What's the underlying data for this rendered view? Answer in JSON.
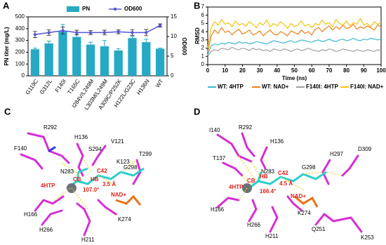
{
  "chart_data": [
    {
      "type": "bar",
      "panel": "A",
      "categories": [
        "G119C",
        "G312L",
        "F140I",
        "T165C",
        "I284V/L249M",
        "L303M/L249M",
        "A309C/P252K",
        "H122L/G23C",
        "H136N",
        "WT"
      ],
      "series": [
        {
          "name": "PN",
          "color": "#26a9c4",
          "values": [
            225,
            275,
            375,
            330,
            265,
            250,
            215,
            320,
            285,
            230
          ],
          "errors": [
            10,
            20,
            60,
            20,
            20,
            50,
            15,
            15,
            25,
            5
          ]
        },
        {
          "name": "OD600",
          "type": "line",
          "axis": "y2",
          "color": "#5656d8",
          "values": [
            10.5,
            11,
            11.5,
            11,
            11,
            11,
            11.2,
            11,
            11,
            12.8
          ],
          "errors": [
            0.8,
            0.7,
            0.9,
            0.6,
            0.5,
            0.6,
            0.5,
            0.7,
            0.8,
            0.4
          ]
        }
      ],
      "ylabel": "PN titer (mg/L)",
      "y2label": "OD600",
      "ylim": [
        0,
        500
      ],
      "yticks": [
        0,
        100,
        200,
        300,
        400,
        500
      ],
      "y2lim": [
        0,
        15
      ],
      "y2ticks": [
        0,
        5,
        10,
        15
      ],
      "legend": "top"
    },
    {
      "type": "line",
      "panel": "B",
      "x": [
        0,
        2,
        4,
        6,
        8,
        10,
        12,
        14,
        16,
        18,
        20,
        22,
        24,
        26,
        28,
        30,
        32,
        34,
        36,
        38,
        40,
        42,
        44,
        46,
        48,
        50,
        52,
        54,
        56,
        58,
        60,
        62,
        64,
        66,
        68,
        70,
        72,
        74,
        76,
        78,
        80,
        82,
        84,
        86,
        88,
        90,
        92,
        94,
        96,
        98,
        100
      ],
      "series": [
        {
          "name": "WT: 4HTP",
          "color": "#3fb8d8",
          "values": [
            1.2,
            2.3,
            2.5,
            2.4,
            2.6,
            2.5,
            2.7,
            2.6,
            2.5,
            2.8,
            2.6,
            2.7,
            2.5,
            2.6,
            2.8,
            2.7,
            2.6,
            2.5,
            2.7,
            2.9,
            2.8,
            2.7,
            2.6,
            2.8,
            2.9,
            2.7,
            2.8,
            3.0,
            2.9,
            2.8,
            2.7,
            2.9,
            3.0,
            2.8,
            2.9,
            3.1,
            2.9,
            2.8,
            3.0,
            3.1,
            2.9,
            3.0,
            3.2,
            3.0,
            2.9,
            3.1,
            3.0,
            3.2,
            3.1,
            3.0,
            3.1
          ]
        },
        {
          "name": "WT: NAD+",
          "color": "#f07f1a",
          "values": [
            1.5,
            3.5,
            4.2,
            3.8,
            4.5,
            3.9,
            4.1,
            3.6,
            4.0,
            4.3,
            3.7,
            3.9,
            4.2,
            3.6,
            3.8,
            4.1,
            3.5,
            3.9,
            4.2,
            3.7,
            3.6,
            4.0,
            3.8,
            3.5,
            4.1,
            3.9,
            3.7,
            4.2,
            3.8,
            4.0,
            3.6,
            4.3,
            4.5,
            4.0,
            4.4,
            4.7,
            4.2,
            4.6,
            4.3,
            4.8,
            4.4,
            4.5,
            4.9,
            4.3,
            4.6,
            4.4,
            4.7,
            4.5,
            4.2,
            4.8,
            4.6
          ]
        },
        {
          "name": "F140I: 4HTP",
          "color": "#a0a0a0",
          "values": [
            1.0,
            1.6,
            1.8,
            1.7,
            2.0,
            1.9,
            1.8,
            2.1,
            1.9,
            1.8,
            2.0,
            1.9,
            1.7,
            2.0,
            1.8,
            1.9,
            1.7,
            1.8,
            1.6,
            1.9,
            1.8,
            1.7,
            1.9,
            1.8,
            1.6,
            1.8,
            1.9,
            1.7,
            1.8,
            2.0,
            1.8,
            1.7,
            1.6,
            1.8,
            1.7,
            1.9,
            1.8,
            1.6,
            1.7,
            1.9,
            1.8,
            1.7,
            1.6,
            1.8,
            1.7,
            1.6,
            1.8,
            1.7,
            1.6,
            1.8,
            1.7
          ]
        },
        {
          "name": "F140I: NAD+",
          "color": "#f5c211",
          "values": [
            2.0,
            4.5,
            5.2,
            4.8,
            5.5,
            4.9,
            5.1,
            4.6,
            5.3,
            4.8,
            5.0,
            4.7,
            5.2,
            4.9,
            4.5,
            5.1,
            4.8,
            5.4,
            4.6,
            5.0,
            4.7,
            5.2,
            4.9,
            4.4,
            5.0,
            4.6,
            4.8,
            5.3,
            4.7,
            4.9,
            4.5,
            5.0,
            4.8,
            5.4,
            4.9,
            5.1,
            4.6,
            5.5,
            5.0,
            4.8,
            5.3,
            4.7,
            5.1,
            4.9,
            5.6,
            4.8,
            5.0,
            4.6,
            5.2,
            4.9,
            5.1
          ]
        }
      ],
      "xlabel": "Time (ns)",
      "ylabel": "RMSD",
      "xlim": [
        0,
        100
      ],
      "xticks": [
        0,
        10,
        20,
        30,
        40,
        50,
        60,
        70,
        80,
        90,
        100
      ],
      "ylim": [
        0,
        7
      ],
      "yticks": [
        0,
        1,
        2,
        3,
        4,
        5,
        6,
        7
      ],
      "legend": "bottom"
    }
  ],
  "structures": [
    {
      "panel": "C",
      "labels": [
        "R292",
        "H136",
        "V121",
        "F140",
        "S294",
        "T299",
        "N283",
        "C42",
        "K123",
        "G298",
        "CB",
        "HB",
        "3.5 Å",
        "4HTP",
        "107.0°",
        "NAD+",
        "H166",
        "K274",
        "H266",
        "H211"
      ]
    },
    {
      "panel": "D",
      "labels": [
        "I140",
        "R292",
        "H136",
        "T137",
        "N283",
        "H297",
        "D309",
        "C42",
        "G298",
        "CB",
        "HB",
        "4.5 Å",
        "4HTP",
        "166.4°",
        "NAD+",
        "H166",
        "K274",
        "H266",
        "H211",
        "Q251",
        "K253"
      ]
    }
  ]
}
